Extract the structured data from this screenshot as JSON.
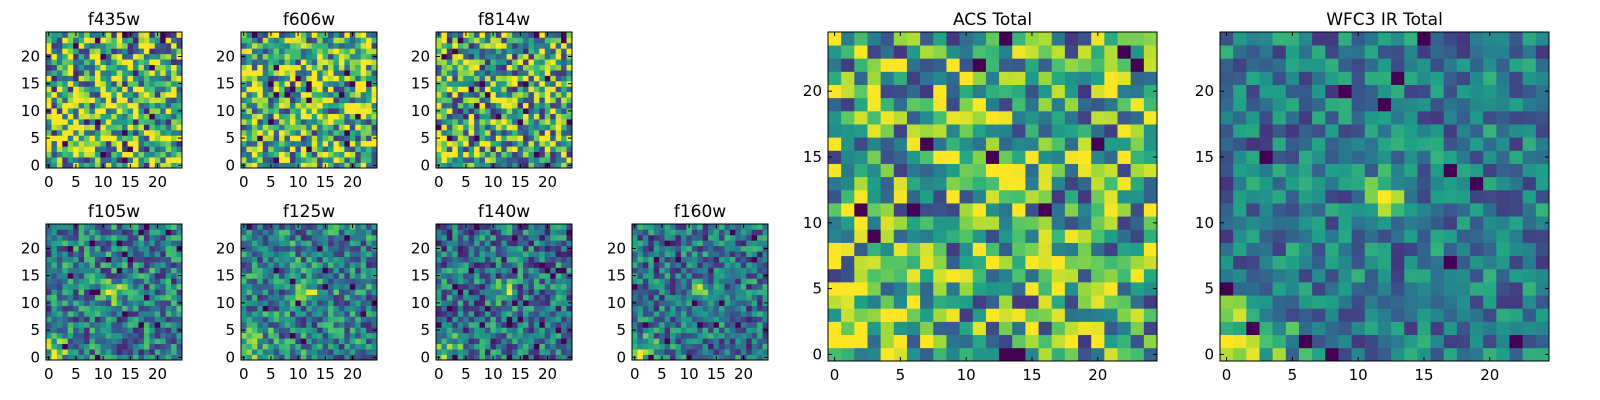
{
  "figure": {
    "background": "#ffffff"
  },
  "colormap": {
    "name": "viridis",
    "stops": [
      "#440154",
      "#46327e",
      "#365c8d",
      "#277f8e",
      "#1fa187",
      "#4ac16d",
      "#a0da39",
      "#fde725"
    ]
  },
  "chart_data": [
    {
      "type": "heatmap",
      "title": "f435w",
      "grid_size": 25,
      "xticks": [
        "0",
        "5",
        "10",
        "15",
        "20"
      ],
      "yticks": [
        "0",
        "5",
        "10",
        "15",
        "20"
      ],
      "xlim": [
        -0.5,
        24.5
      ],
      "ylim": [
        -0.5,
        24.5
      ],
      "source_x": 12,
      "source_y": 12,
      "signal": 0.18,
      "corner": 0.05,
      "noise": 0.55,
      "base": 0.64,
      "seed": 11,
      "cmap": "viridis"
    },
    {
      "type": "heatmap",
      "title": "f606w",
      "grid_size": 25,
      "xticks": [
        "0",
        "5",
        "10",
        "15",
        "20"
      ],
      "yticks": [
        "0",
        "5",
        "10",
        "15",
        "20"
      ],
      "xlim": [
        -0.5,
        24.5
      ],
      "ylim": [
        -0.5,
        24.5
      ],
      "source_x": 12,
      "source_y": 12,
      "signal": 0.28,
      "corner": 0.18,
      "noise": 0.5,
      "base": 0.66,
      "seed": 23,
      "cmap": "viridis"
    },
    {
      "type": "heatmap",
      "title": "f814w",
      "grid_size": 25,
      "xticks": [
        "0",
        "5",
        "10",
        "15",
        "20"
      ],
      "yticks": [
        "0",
        "5",
        "10",
        "15",
        "20"
      ],
      "xlim": [
        -0.5,
        24.5
      ],
      "ylim": [
        -0.5,
        24.5
      ],
      "source_x": 12,
      "source_y": 12,
      "signal": 0.32,
      "corner": 0.3,
      "noise": 0.5,
      "base": 0.6,
      "seed": 37,
      "cmap": "viridis"
    },
    {
      "type": "heatmap",
      "title": "f105w",
      "grid_size": 25,
      "xticks": [
        "0",
        "5",
        "10",
        "15",
        "20"
      ],
      "yticks": [
        "0",
        "5",
        "10",
        "15",
        "20"
      ],
      "xlim": [
        -0.5,
        24.5
      ],
      "ylim": [
        -0.5,
        24.5
      ],
      "source_x": 12,
      "source_y": 12,
      "signal": 0.5,
      "corner": 0.35,
      "noise": 0.32,
      "base": 0.42,
      "seed": 41,
      "cmap": "viridis"
    },
    {
      "type": "heatmap",
      "title": "f125w",
      "grid_size": 25,
      "xticks": [
        "0",
        "5",
        "10",
        "15",
        "20"
      ],
      "yticks": [
        "0",
        "5",
        "10",
        "15",
        "20"
      ],
      "xlim": [
        -0.5,
        24.5
      ],
      "ylim": [
        -0.5,
        24.5
      ],
      "source_x": 12,
      "source_y": 12,
      "signal": 0.45,
      "corner": 0.4,
      "noise": 0.32,
      "base": 0.44,
      "seed": 53,
      "cmap": "viridis"
    },
    {
      "type": "heatmap",
      "title": "f140w",
      "grid_size": 25,
      "xticks": [
        "0",
        "5",
        "10",
        "15",
        "20"
      ],
      "yticks": [
        "0",
        "5",
        "10",
        "15",
        "20"
      ],
      "xlim": [
        -0.5,
        24.5
      ],
      "ylim": [
        -0.5,
        24.5
      ],
      "source_x": 12,
      "source_y": 12,
      "signal": 0.45,
      "corner": 0.45,
      "noise": 0.32,
      "base": 0.38,
      "seed": 67,
      "cmap": "viridis"
    },
    {
      "type": "heatmap",
      "title": "f160w",
      "grid_size": 25,
      "xticks": [
        "0",
        "5",
        "10",
        "15",
        "20"
      ],
      "yticks": [
        "0",
        "5",
        "10",
        "15",
        "20"
      ],
      "xlim": [
        -0.5,
        24.5
      ],
      "ylim": [
        -0.5,
        24.5
      ],
      "source_x": 12,
      "source_y": 12,
      "signal": 0.45,
      "corner": 0.55,
      "noise": 0.3,
      "base": 0.38,
      "seed": 79,
      "cmap": "viridis"
    },
    {
      "type": "heatmap",
      "title": "ACS Total",
      "grid_size": 25,
      "xticks": [
        "0",
        "5",
        "10",
        "15",
        "20"
      ],
      "yticks": [
        "0",
        "5",
        "10",
        "15",
        "20"
      ],
      "xlim": [
        -0.5,
        24.5
      ],
      "ylim": [
        -0.5,
        24.5
      ],
      "source_x": 12,
      "source_y": 12,
      "signal": 0.35,
      "corner": 0.3,
      "noise": 0.45,
      "base": 0.6,
      "seed": 97,
      "cmap": "viridis"
    },
    {
      "type": "heatmap",
      "title": "WFC3 IR Total",
      "grid_size": 25,
      "xticks": [
        "0",
        "5",
        "10",
        "15",
        "20"
      ],
      "yticks": [
        "0",
        "5",
        "10",
        "15",
        "20"
      ],
      "xlim": [
        -0.5,
        24.5
      ],
      "ylim": [
        -0.5,
        24.5
      ],
      "source_x": 12,
      "source_y": 12,
      "signal": 0.55,
      "corner": 0.6,
      "noise": 0.25,
      "base": 0.4,
      "seed": 113,
      "cmap": "viridis"
    }
  ]
}
